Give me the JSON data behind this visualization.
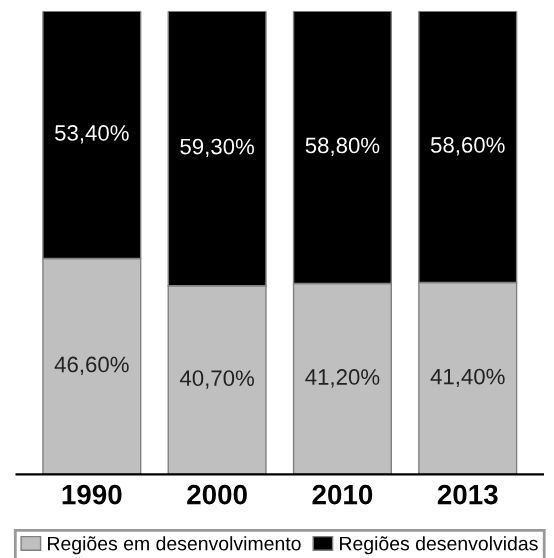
{
  "chart_data": {
    "type": "bar",
    "stacked": true,
    "categories": [
      "1990",
      "2000",
      "2010",
      "2013"
    ],
    "series": [
      {
        "name": "Regiões em desenvolvimento",
        "color": "#bfbfbf",
        "values": [
          46.6,
          40.7,
          41.2,
          41.4
        ],
        "value_labels": [
          "46,60%",
          "40,70%",
          "41,20%",
          "41,40%"
        ]
      },
      {
        "name": "Regiões desenvolvidas",
        "color": "#000000",
        "values": [
          53.4,
          59.3,
          58.8,
          58.6
        ],
        "value_labels": [
          "53,40%",
          "59,30%",
          "58,80%",
          "58,60%"
        ]
      }
    ],
    "ylim": [
      0,
      100
    ],
    "tick_labels": "x",
    "grid": false,
    "legend": "bottom"
  }
}
